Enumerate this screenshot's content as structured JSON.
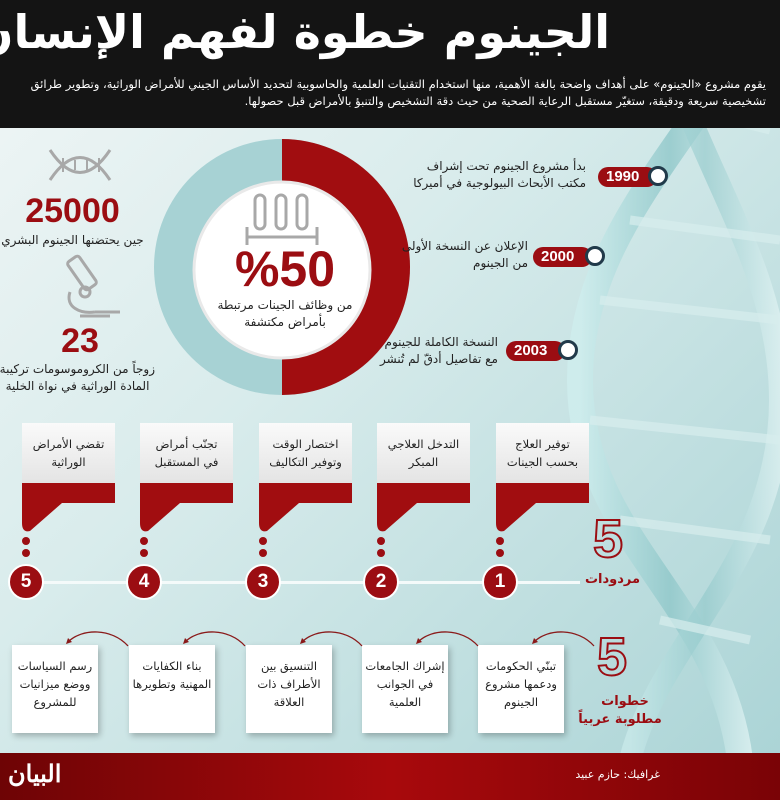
{
  "header": {
    "title": "الجينوم خطوة لفهم الإنسان",
    "intro": "يقوم مشروع «الجينوم» على أهداف واضحة بالغة الأهمية، منها استخدام التقنيات العلمية والحاسوبية لتحديد الأساس الجيني للأمراض الوراثية، وتطوير طرائق تشخيصية سريعة ودقيقة، ستغيّر مستقبل الرعاية الصحية من حيث دقة التشخيص والتنبؤ بالأمراض قبل حصولها."
  },
  "stats": {
    "genes_value": "25000",
    "genes_label": "جين يحتضنها الجينوم البشري",
    "chromosomes_value": "23",
    "chromosomes_label_1": "زوجاً من الكروموسومات تركيبة",
    "chromosomes_label_2": "المادة الوراثية في نواة الخلية",
    "percent_value": "%50",
    "percent_fraction": 0.5,
    "percent_label_1": "من وظائف الجينات مرتبطة",
    "percent_label_2": "بأمراض مكتشفة"
  },
  "timeline": [
    {
      "year": "1990",
      "line1": "بدأ مشروع الجينوم تحت إشراف",
      "line2": "مكتب الأبحاث البيولوجية في أميركا"
    },
    {
      "year": "2000",
      "line1": "الإعلان عن النسخة الأولى",
      "line2": "من الجينوم"
    },
    {
      "year": "2003",
      "line1": "النسخة الكاملة للجينوم",
      "line2": "مع تفاصيل أدقّ لم تُنشر"
    }
  ],
  "benefits": {
    "count": "5",
    "label": "مردودات",
    "items": [
      {
        "num": "1",
        "line1": "توفير العلاج",
        "line2": "بحسب الجينات"
      },
      {
        "num": "2",
        "line1": "التدخل العلاجي",
        "line2": "المبكر"
      },
      {
        "num": "3",
        "line1": "اختصار الوقت",
        "line2": "وتوفير التكاليف"
      },
      {
        "num": "4",
        "line1": "تجنّب أمراض",
        "line2": "في المستقبل"
      },
      {
        "num": "5",
        "line1": "تقضي الأمراض",
        "line2": "الوراثية"
      }
    ]
  },
  "steps": {
    "count": "5",
    "label_1": "خطوات",
    "label_2": "مطلوبة عربياً",
    "items": [
      {
        "line1": "تبنّي الحكومات",
        "line2": "ودعمها مشروع",
        "line3": "الجينوم"
      },
      {
        "line1": "إشراك الجامعات",
        "line2": "في الجوانب",
        "line3": "العلمية"
      },
      {
        "line1": "التنسيق بين",
        "line2": "الأطراف ذات",
        "line3": "العلاقة"
      },
      {
        "line1": "بناء الكفايات",
        "line2": "المهنية وتطويرها",
        "line3": ""
      },
      {
        "line1": "رسم السياسات",
        "line2": "ووضع ميزانيات",
        "line3": "للمشروع"
      }
    ]
  },
  "footer": {
    "credit": "غرافيك: حازم عبيد",
    "logo": "البيان"
  },
  "colors": {
    "accent": "#9b0d12",
    "header_bg": "#141414",
    "donut_rest": "#a7d2d4"
  }
}
